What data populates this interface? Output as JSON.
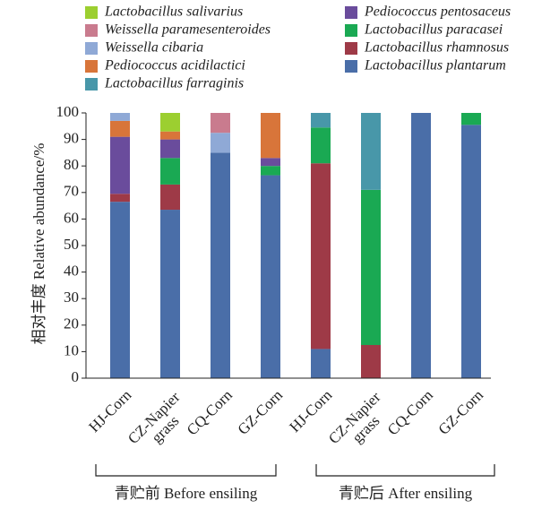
{
  "chart_data": {
    "type": "stacked-bar",
    "y_label": "相对丰度 Relative abundance/%",
    "categories": [
      "HJ-Corn",
      "CZ-Napier grass",
      "CQ-Corn",
      "GZ-Corn",
      "HJ-Corn",
      "CZ-Napier grass",
      "CQ-Corn",
      "GZ-Corn"
    ],
    "groups": [
      "青贮前 Before ensiling",
      "青贮后 After ensiling"
    ],
    "ylim": [
      0,
      100
    ],
    "yticks": [
      0,
      10,
      20,
      30,
      40,
      50,
      60,
      70,
      80,
      90,
      100
    ],
    "series": [
      {
        "name": "Lactobacillus plantarum",
        "color": "#4a6ea8",
        "values": [
          66.5,
          63.5,
          85,
          76.5,
          11,
          0,
          100,
          95.5
        ]
      },
      {
        "name": "Lactobacillus rhamnosus",
        "color": "#9e3a47",
        "values": [
          3,
          9.5,
          0,
          0,
          70,
          12.5,
          0,
          0
        ]
      },
      {
        "name": "Lactobacillus paracasei",
        "color": "#1aa953",
        "values": [
          0,
          10,
          0,
          3.5,
          13.5,
          58.5,
          0,
          4.5
        ]
      },
      {
        "name": "Pediococcus pentosaceus",
        "color": "#6a4c9c",
        "values": [
          21.5,
          7,
          0,
          3,
          0,
          0,
          0,
          0
        ]
      },
      {
        "name": "Lactobacillus farraginis",
        "color": "#4897a9",
        "values": [
          0,
          0,
          0,
          0,
          5.5,
          29,
          0,
          0
        ]
      },
      {
        "name": "Pediococcus acidilactici",
        "color": "#d8753a",
        "values": [
          6,
          3,
          0,
          17,
          0,
          0,
          0,
          0
        ]
      },
      {
        "name": "Weissella cibaria",
        "color": "#8fa9d6",
        "values": [
          3,
          0,
          7.5,
          0,
          0,
          0,
          0,
          0
        ]
      },
      {
        "name": "Weissella paramesenteroides",
        "color": "#c97b8e",
        "values": [
          0,
          0,
          7.5,
          0,
          0,
          0,
          0,
          0
        ]
      },
      {
        "name": "Lactobacillus salivarius",
        "color": "#9ccf30",
        "values": [
          0,
          7,
          0,
          0,
          0,
          0,
          0,
          0
        ]
      }
    ]
  }
}
